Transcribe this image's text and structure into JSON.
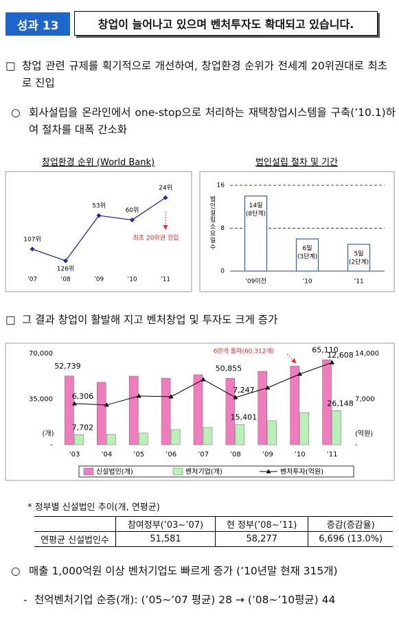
{
  "header": {
    "badge": "성과 13",
    "title": "창업이 늘어나고 있으며 벤처투자도 확대되고 있습니다."
  },
  "sections": [
    {
      "marker": "□",
      "text": "창업 관련 규제를 획기적으로 개선하여, 창업환경 순위가 전세계 20위권대로 최초로 진입"
    },
    {
      "marker": "○",
      "text": "회사설립을 온라인에서 one-stop으로 처리하는 재택창업시스템을 구축(’10.1)하여 절차를 대폭 간소화"
    },
    {
      "marker": "□",
      "text": "그 결과 창업이 활발해 지고 벤처창업 및 투자도 크게 증가"
    },
    {
      "marker": "○",
      "text": "매출 1,000억원 이상 벤처기업도 빠르게 증가 (’10년말 현재 315개)"
    },
    {
      "marker": "-",
      "text": "천억벤처기업 순증(개): (’05∼’07 평균) 28 → (’08∼’10평균) 44"
    }
  ],
  "chart_data": [
    {
      "type": "line",
      "title": "창업환경 순위 (World Bank)",
      "categories": [
        "’07",
        "’08",
        "’09",
        "’10",
        "’11"
      ],
      "values": [
        107,
        126,
        53,
        60,
        24
      ],
      "value_labels": [
        "107위",
        "126위",
        "53위",
        "60위",
        "24위"
      ],
      "color": "#1f2a8c",
      "y_inverted": true,
      "annotation": "최초 20위권 진입",
      "annotation_color": "#e8262b"
    },
    {
      "type": "bar",
      "title": "법인설립 절차 및 기간",
      "y_label": "법인설립소요일수",
      "categories": [
        "’09이전",
        "’10",
        "’11"
      ],
      "values": [
        14,
        6,
        5
      ],
      "value_labels": [
        "14일",
        "6일",
        "5일"
      ],
      "step_labels": [
        "(8단계)",
        "(3단계)",
        "(2단계)"
      ],
      "ylim": [
        0,
        16
      ],
      "yticks": [
        0,
        8,
        16
      ],
      "color": "#2e5fb3",
      "grid": true
    },
    {
      "type": "combo",
      "categories": [
        "’03",
        "’04",
        "’05",
        "’06",
        "’07",
        "’08",
        "’09",
        "’10",
        "’11"
      ],
      "series": [
        {
          "name": "신설법인(개)",
          "type": "bar",
          "color": "#f07bbd",
          "values": [
            52739,
            47900,
            52600,
            51000,
            53700,
            50855,
            56300,
            60312,
            65110
          ],
          "value_labels": [
            "52,739",
            null,
            null,
            null,
            null,
            "50,855",
            null,
            null,
            "65,110"
          ]
        },
        {
          "name": "벤처기업(개)",
          "type": "bar",
          "color": "#b8f0b8",
          "values": [
            7702,
            7900,
            9000,
            11600,
            13200,
            15401,
            18400,
            24700,
            26148
          ],
          "value_labels": [
            "7,702",
            null,
            null,
            null,
            null,
            "15,401",
            null,
            null,
            "26,148"
          ]
        },
        {
          "name": "벤처투자(억원)",
          "type": "line",
          "axis": "y2",
          "color": "#000000",
          "values": [
            6306,
            6100,
            7470,
            7370,
            10000,
            7247,
            8740,
            10840,
            12608
          ],
          "value_labels": [
            "6,306",
            null,
            null,
            null,
            null,
            "7,247",
            null,
            null,
            "12,608"
          ]
        }
      ],
      "ylim": [
        0,
        70000
      ],
      "yticks": [
        {
          "value": 0,
          "label": "-"
        },
        {
          "value": 35000,
          "label": "35,000"
        },
        {
          "value": 70000,
          "label": "70,000"
        }
      ],
      "y2lim": [
        0,
        14000
      ],
      "y2ticks": [
        {
          "value": 0,
          "label": "-"
        },
        {
          "value": 7000,
          "label": "7,000"
        },
        {
          "value": 14000,
          "label": "14,000"
        }
      ],
      "y_label": "(개)",
      "y2_label": "(억원)",
      "annotation": "6만개 돌파(60,312개)",
      "annotation_color": "#e8262b"
    }
  ],
  "table_note": "* 정부별 신설법인 추이(개, 연평균)",
  "table": {
    "columns": [
      "참여정부(’03∼’07)",
      "현 정부(’08∼’11)",
      "증감(증감율)"
    ],
    "rows": [
      [
        "연평균 신설법인수",
        "51,581",
        "58,277",
        "6,696 (13.0%)"
      ]
    ]
  }
}
